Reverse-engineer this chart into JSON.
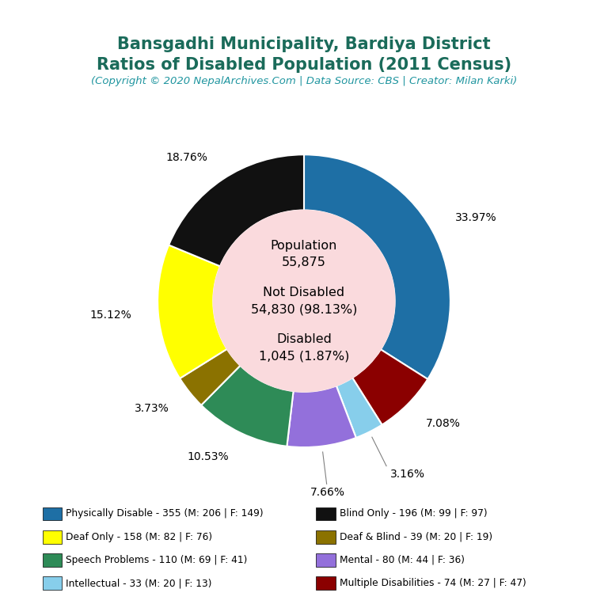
{
  "title_line1": "Bansgadhi Municipality, Bardiya District",
  "title_line2": "Ratios of Disabled Population (2011 Census)",
  "subtitle": "(Copyright © 2020 NepalArchives.Com | Data Source: CBS | Creator: Milan Karki)",
  "title_color": "#1a6b5a",
  "subtitle_color": "#2196a0",
  "center_bg": "#fadadd",
  "slices": [
    {
      "label": "Physically Disable - 355 (M: 206 | F: 149)",
      "value": 355,
      "color": "#1e6fa5",
      "pct": "33.97%"
    },
    {
      "label": "Multiple Disabilities - 74 (M: 27 | F: 47)",
      "value": 74,
      "color": "#8b0000",
      "pct": "7.08%"
    },
    {
      "label": "Intellectual - 33 (M: 20 | F: 13)",
      "value": 33,
      "color": "#87ceeb",
      "pct": "3.16%"
    },
    {
      "label": "Mental - 80 (M: 44 | F: 36)",
      "value": 80,
      "color": "#9370db",
      "pct": "7.66%"
    },
    {
      "label": "Speech Problems - 110 (M: 69 | F: 41)",
      "value": 110,
      "color": "#2e8b57",
      "pct": "10.53%"
    },
    {
      "label": "Deaf & Blind - 39 (M: 20 | F: 19)",
      "value": 39,
      "color": "#8b7200",
      "pct": "3.73%"
    },
    {
      "label": "Deaf Only - 158 (M: 82 | F: 76)",
      "value": 158,
      "color": "#ffff00",
      "pct": "15.12%"
    },
    {
      "label": "Blind Only - 196 (M: 99 | F: 97)",
      "value": 196,
      "color": "#111111",
      "pct": "18.76%"
    }
  ],
  "legend_items_left": [
    {
      "label": "Physically Disable - 355 (M: 206 | F: 149)",
      "color": "#1e6fa5"
    },
    {
      "label": "Deaf Only - 158 (M: 82 | F: 76)",
      "color": "#ffff00"
    },
    {
      "label": "Speech Problems - 110 (M: 69 | F: 41)",
      "color": "#2e8b57"
    },
    {
      "label": "Intellectual - 33 (M: 20 | F: 13)",
      "color": "#87ceeb"
    }
  ],
  "legend_items_right": [
    {
      "label": "Blind Only - 196 (M: 99 | F: 97)",
      "color": "#111111"
    },
    {
      "label": "Deaf & Blind - 39 (M: 20 | F: 19)",
      "color": "#8b7200"
    },
    {
      "label": "Mental - 80 (M: 44 | F: 36)",
      "color": "#9370db"
    },
    {
      "label": "Multiple Disabilities - 74 (M: 27 | F: 47)",
      "color": "#8b0000"
    }
  ]
}
